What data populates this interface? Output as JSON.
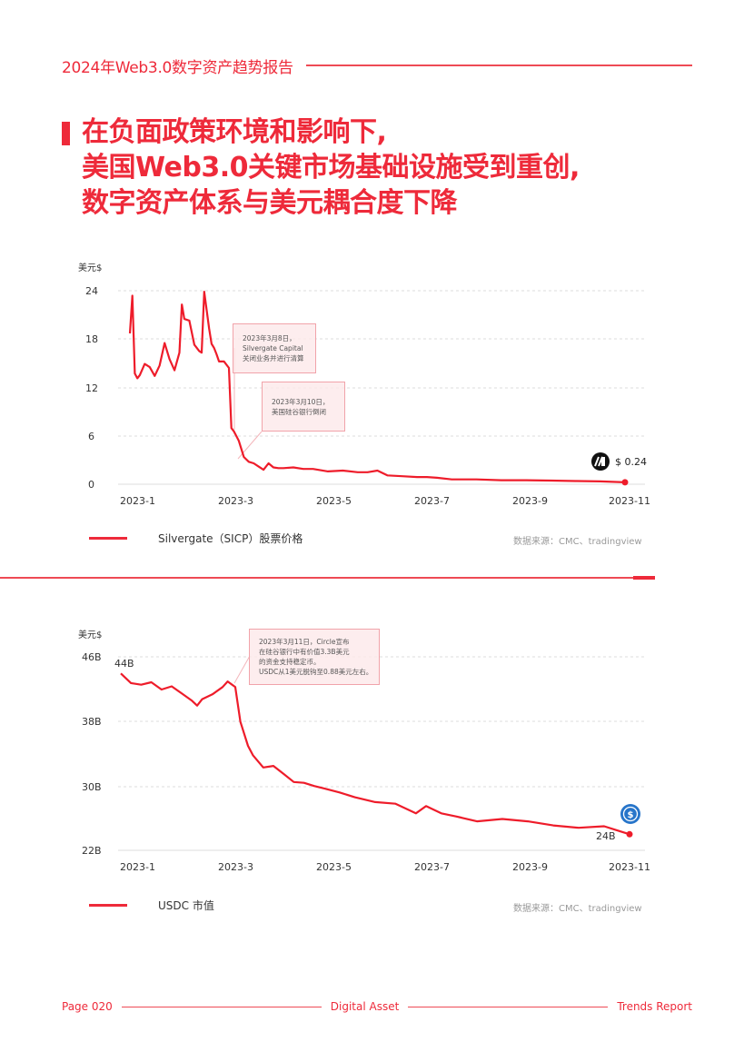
{
  "header": {
    "title": "2024年Web3.0数字资产趋势报告"
  },
  "headline": {
    "lines": [
      "在负面政策环境和影响下,",
      "美国Web3.0关键市场基础设施受到重创,",
      "数字资产体系与美元耦合度下降"
    ]
  },
  "chart1": {
    "unit_label": "美元$",
    "end_label": "$ 0.24",
    "legend_label": "Silvergate（SICP）股票价格",
    "source": "数据来源：CMC、tradingview",
    "annotations": [
      {
        "lines": [
          "2023年3月8日，",
          "Silvergate Capital",
          "关闭业务并进行清算"
        ]
      },
      {
        "lines": [
          "2023年3月10日，",
          "美国硅谷银行倒闭"
        ]
      }
    ]
  },
  "chart2": {
    "unit_label": "美元$",
    "start_label": "44B",
    "end_label": "24B",
    "legend_label": "USDC 市值",
    "source": "数据来源：CMC、tradingview",
    "annotations": [
      {
        "lines": [
          "2023年3月11日，Circle宣布",
          "在硅谷银行中有价值3.3B美元",
          "的资金支持稳定币。",
          "USDC从1美元脱钩至0.88美元左右。"
        ]
      }
    ]
  },
  "footer": {
    "page": "Page 020",
    "middle": "Digital Asset",
    "right": "Trends Report"
  },
  "colors": {
    "accent": "#ee2a3a",
    "grid": "#dddddd",
    "annotation_bg": "#fce8ea",
    "annotation_border": "#f1a3aa",
    "usdc_blue": "#2775ca"
  },
  "chart_data": [
    {
      "type": "line",
      "title": "Silvergate（SICP）股票价格",
      "xlabel": "",
      "ylabel": "美元$",
      "x_ticks": [
        "2023-1",
        "2023-3",
        "2023-5",
        "2023-7",
        "2023-9",
        "2023-11"
      ],
      "y_ticks": [
        0,
        6,
        12,
        18,
        24
      ],
      "ylim": [
        0,
        24
      ],
      "grid": true,
      "legend_position": "bottom-left",
      "series": [
        {
          "name": "Silvergate（SICP）股票价格",
          "x_month": [
            0.0,
            0.05,
            0.1,
            0.15,
            0.2,
            0.3,
            0.4,
            0.5,
            0.6,
            0.7,
            0.8,
            0.9,
            1.0,
            1.05,
            1.1,
            1.2,
            1.3,
            1.4,
            1.45,
            1.5,
            1.6,
            1.65,
            1.7,
            1.75,
            1.8,
            1.9,
            2.0,
            2.05,
            2.1,
            2.15,
            2.2,
            2.3,
            2.4,
            2.5,
            2.6,
            2.7,
            2.8,
            2.9,
            3.0,
            3.1,
            3.3,
            3.5,
            3.7,
            4.0,
            4.3,
            4.6,
            4.8,
            5.0,
            5.2,
            5.5,
            5.8,
            6.0,
            6.2,
            6.5,
            7.0,
            7.5,
            8.0,
            8.5,
            9.0,
            9.5,
            10.0
          ],
          "values": [
            18.8,
            23.5,
            13.8,
            13.2,
            13.6,
            15.0,
            14.6,
            13.5,
            14.8,
            17.6,
            15.6,
            14.2,
            16.4,
            22.4,
            20.6,
            20.4,
            17.4,
            16.6,
            16.4,
            24.0,
            19.4,
            17.5,
            17.0,
            16.2,
            15.3,
            15.3,
            14.5,
            7.0,
            6.6,
            6.0,
            5.4,
            3.4,
            2.8,
            2.6,
            2.2,
            1.8,
            2.6,
            2.1,
            2.0,
            2.0,
            2.1,
            1.9,
            1.9,
            1.6,
            1.7,
            1.5,
            1.5,
            1.7,
            1.1,
            1.0,
            0.9,
            0.9,
            0.8,
            0.6,
            0.6,
            0.5,
            0.5,
            0.45,
            0.4,
            0.35,
            0.24
          ]
        }
      ],
      "annotations": [
        "2023年3月8日，Silvergate Capital 关闭业务并进行清算",
        "2023年3月10日，美国硅谷银行倒闭",
        "$ 0.24"
      ]
    },
    {
      "type": "line",
      "title": "USDC 市值",
      "xlabel": "",
      "ylabel": "美元$",
      "x_ticks": [
        "2023-1",
        "2023-3",
        "2023-5",
        "2023-7",
        "2023-9",
        "2023-11"
      ],
      "y_ticks": [
        "22B",
        "30B",
        "38B",
        "46B"
      ],
      "ylim": [
        22,
        46
      ],
      "grid": true,
      "legend_position": "bottom-left",
      "series": [
        {
          "name": "USDC 市值",
          "x_month": [
            0.0,
            0.2,
            0.4,
            0.6,
            0.8,
            1.0,
            1.2,
            1.4,
            1.5,
            1.6,
            1.8,
            2.0,
            2.1,
            2.25,
            2.35,
            2.5,
            2.6,
            2.8,
            3.0,
            3.2,
            3.4,
            3.6,
            3.8,
            4.0,
            4.3,
            4.6,
            5.0,
            5.4,
            5.8,
            6.0,
            6.3,
            6.6,
            7.0,
            7.5,
            8.0,
            8.5,
            9.0,
            9.5,
            9.8,
            10.0
          ],
          "values": [
            44.0,
            42.8,
            42.6,
            42.9,
            42.0,
            42.4,
            41.5,
            40.6,
            40.0,
            40.8,
            41.4,
            42.3,
            43.0,
            42.3,
            38.0,
            35.0,
            33.8,
            32.3,
            32.5,
            31.5,
            30.5,
            30.4,
            30.0,
            29.7,
            29.2,
            28.6,
            28.0,
            27.8,
            26.6,
            27.5,
            26.6,
            26.2,
            25.6,
            25.9,
            25.6,
            25.1,
            24.8,
            25.0,
            24.4,
            24.0
          ]
        }
      ],
      "annotations": [
        "2023年3月11日，Circle宣布在硅谷银行中有价值3.3B美元的资金支持稳定币。USDC从1美元脱钩至0.88美元左右。",
        "44B",
        "24B"
      ]
    }
  ]
}
